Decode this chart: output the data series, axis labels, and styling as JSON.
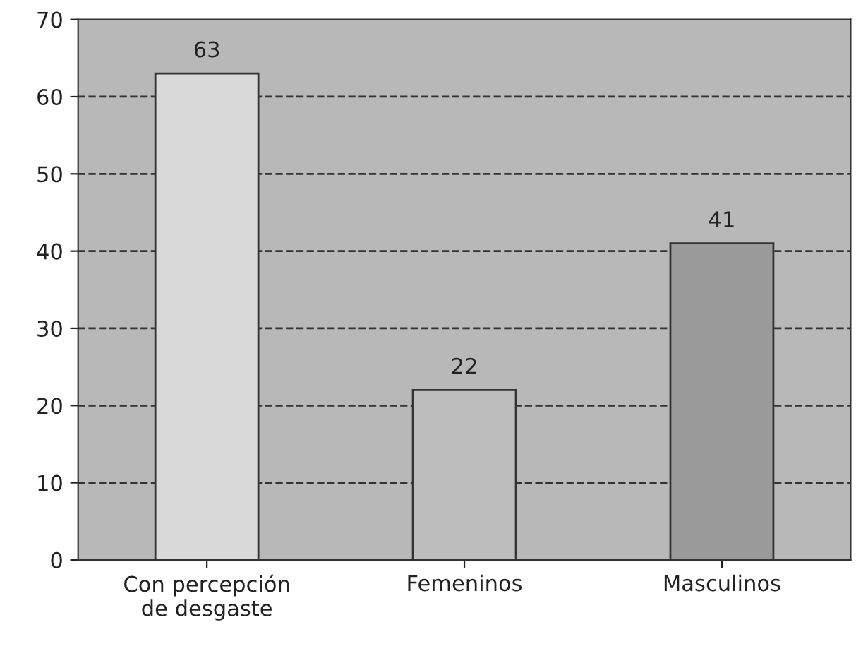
{
  "chart_data": {
    "type": "bar",
    "categories": [
      "Con percepción\nde desgaste",
      "Femeninos",
      "Masculinos"
    ],
    "values": [
      63,
      22,
      41
    ],
    "colors": [
      "#d9d9d9",
      "#bdbdbd",
      "#9a9a9a"
    ],
    "ylim": [
      0,
      70
    ],
    "yticks": [
      0,
      10,
      20,
      30,
      40,
      50,
      60,
      70
    ],
    "grid": "y",
    "data_labels": true
  }
}
